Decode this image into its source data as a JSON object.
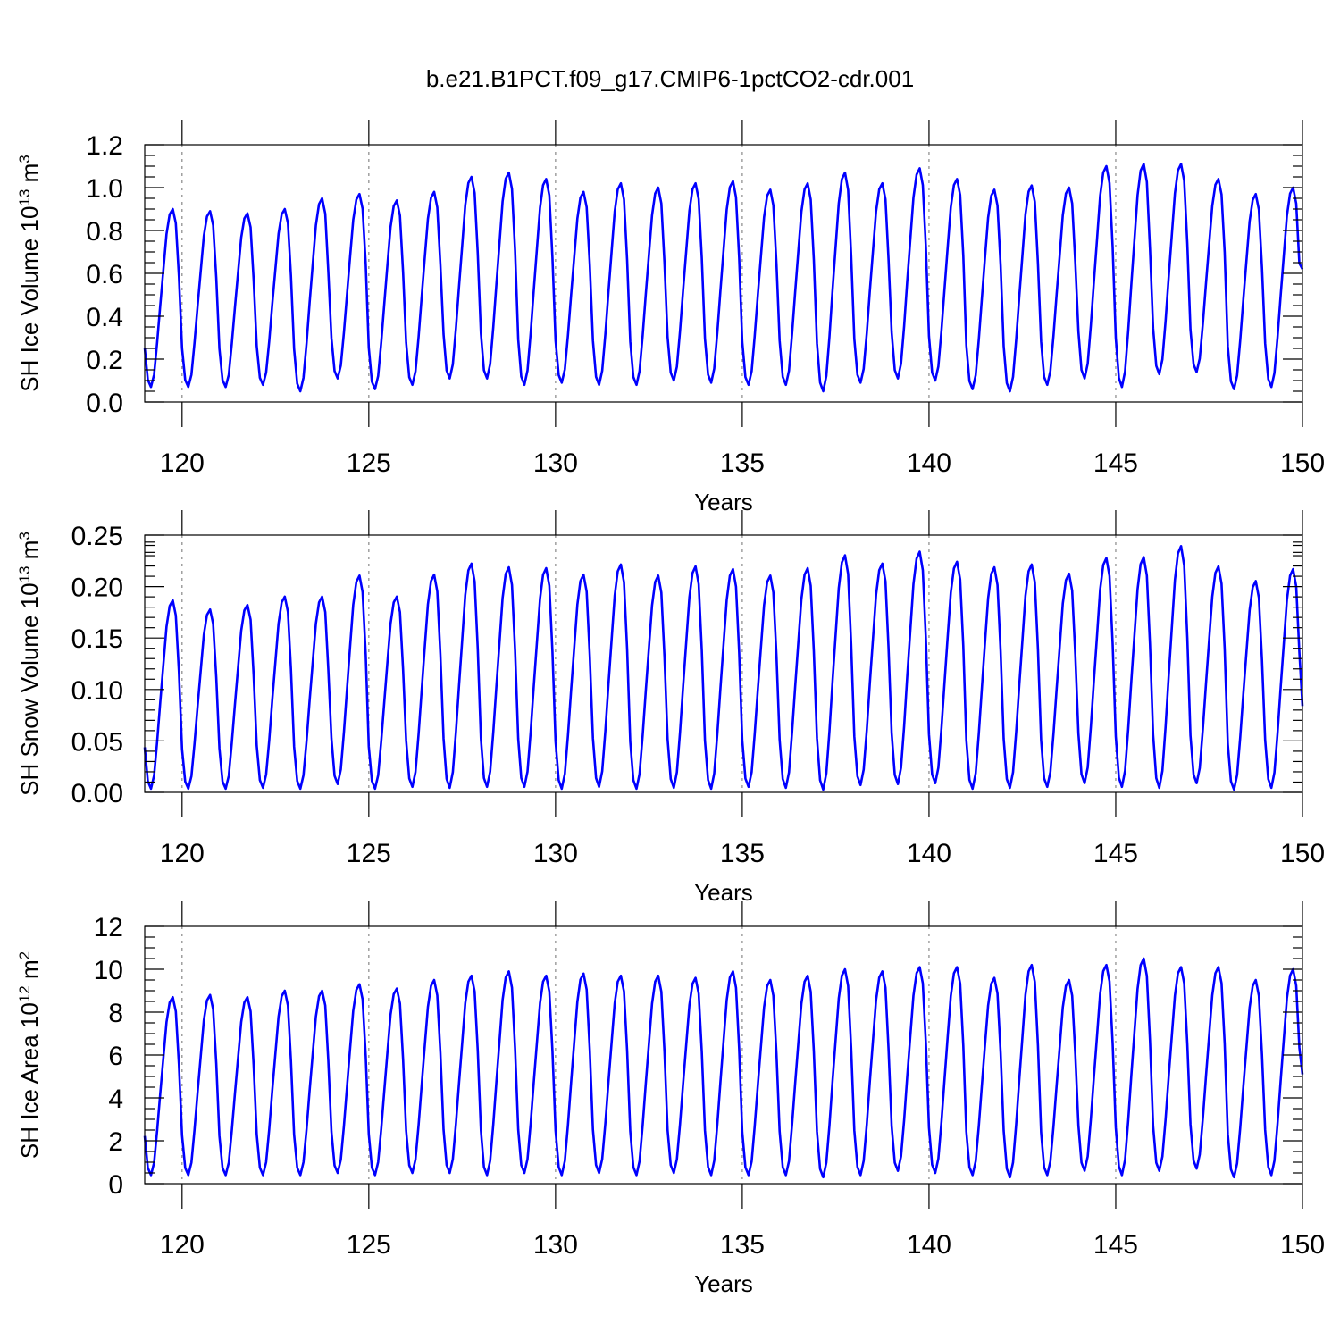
{
  "figure_title": "b.e21.B1PCT.f09_g17.CMIP6-1pctCO2-cdr.001",
  "colors": {
    "series": "#0000ff",
    "grid": "#888888",
    "axes": "#000000"
  },
  "chart_data": [
    {
      "type": "line",
      "title": "",
      "xlabel": "Years",
      "ylabel": {
        "main": "SH Ice Volume 10",
        "sup1": "13",
        "mid": " m",
        "sup2": "3"
      },
      "xlim": [
        119,
        150
      ],
      "ylim": [
        0,
        1.2
      ],
      "xticks": [
        "120",
        "125",
        "130",
        "135",
        "140",
        "145",
        "150"
      ],
      "yticks": [
        "0.0",
        "0.2",
        "0.4",
        "0.6",
        "0.8",
        "1.0",
        "1.2"
      ],
      "grid": "dashed vertical at major x ticks",
      "series": [
        {
          "start_year": 119,
          "samples_per_year": 12,
          "annual_min": [
            0.07,
            0.07,
            0.07,
            0.08,
            0.05,
            0.11,
            0.06,
            0.08,
            0.11,
            0.11,
            0.08,
            0.09,
            0.08,
            0.08,
            0.1,
            0.09,
            0.08,
            0.08,
            0.05,
            0.09,
            0.11,
            0.1,
            0.06,
            0.05,
            0.08,
            0.11,
            0.07,
            0.13,
            0.14,
            0.06,
            0.07
          ],
          "annual_max": [
            0.9,
            0.89,
            0.88,
            0.9,
            0.95,
            0.97,
            0.94,
            0.98,
            1.05,
            1.07,
            1.04,
            0.98,
            1.02,
            1.0,
            1.02,
            1.03,
            0.99,
            1.02,
            1.07,
            1.02,
            1.09,
            1.04,
            0.99,
            1.01,
            1.0,
            1.1,
            1.11,
            1.11,
            1.04,
            0.97,
            1.0
          ],
          "end_value": 0.62
        }
      ]
    },
    {
      "type": "line",
      "title": "",
      "xlabel": "Years",
      "ylabel": {
        "main": "SH Snow Volume 10",
        "sup1": "13",
        "mid": " m",
        "sup2": "3"
      },
      "xlim": [
        119,
        150
      ],
      "ylim": [
        0,
        0.28
      ],
      "xticks": [
        "120",
        "125",
        "130",
        "135",
        "140",
        "145",
        "150"
      ],
      "yticks": [
        "0.00",
        "0.05",
        "0.10",
        "0.15",
        "0.20",
        "0.25"
      ],
      "grid": "dashed vertical at major x ticks",
      "series": [
        {
          "start_year": 119,
          "samples_per_year": 12,
          "annual_min": [
            0.004,
            0.004,
            0.004,
            0.005,
            0.004,
            0.009,
            0.004,
            0.006,
            0.005,
            0.006,
            0.006,
            0.004,
            0.006,
            0.004,
            0.005,
            0.004,
            0.006,
            0.005,
            0.003,
            0.008,
            0.009,
            0.01,
            0.004,
            0.005,
            0.006,
            0.01,
            0.006,
            0.005,
            0.01,
            0.003,
            0.005
          ],
          "annual_max": [
            0.209,
            0.199,
            0.204,
            0.213,
            0.213,
            0.236,
            0.213,
            0.237,
            0.249,
            0.245,
            0.244,
            0.237,
            0.248,
            0.236,
            0.246,
            0.243,
            0.236,
            0.244,
            0.258,
            0.249,
            0.262,
            0.251,
            0.245,
            0.248,
            0.238,
            0.255,
            0.256,
            0.268,
            0.246,
            0.23,
            0.243
          ],
          "end_value": 0.094
        }
      ]
    },
    {
      "type": "line",
      "title": "",
      "xlabel": "Years",
      "ylabel": {
        "main": "SH Ice Area 10",
        "sup1": "12",
        "mid": " m",
        "sup2": "2"
      },
      "xlim": [
        119,
        150
      ],
      "ylim": [
        0,
        12
      ],
      "xticks": [
        "120",
        "125",
        "130",
        "135",
        "140",
        "145",
        "150"
      ],
      "yticks": [
        "0",
        "2",
        "4",
        "6",
        "8",
        "10",
        "12"
      ],
      "grid": "dashed vertical at major x ticks",
      "series": [
        {
          "start_year": 119,
          "samples_per_year": 12,
          "annual_min": [
            0.4,
            0.4,
            0.4,
            0.4,
            0.4,
            0.5,
            0.4,
            0.5,
            0.5,
            0.4,
            0.5,
            0.4,
            0.5,
            0.4,
            0.5,
            0.4,
            0.4,
            0.4,
            0.3,
            0.4,
            0.6,
            0.5,
            0.4,
            0.3,
            0.4,
            0.6,
            0.4,
            0.6,
            0.7,
            0.3,
            0.4
          ],
          "annual_max": [
            8.7,
            8.8,
            8.7,
            9.0,
            9.0,
            9.3,
            9.1,
            9.5,
            9.7,
            9.9,
            9.7,
            9.8,
            9.7,
            9.7,
            9.6,
            9.9,
            9.5,
            9.7,
            10.0,
            9.9,
            10.1,
            10.1,
            9.6,
            10.2,
            9.5,
            10.2,
            10.5,
            10.1,
            10.1,
            9.5,
            10.0
          ],
          "end_value": 5.1
        }
      ]
    }
  ]
}
